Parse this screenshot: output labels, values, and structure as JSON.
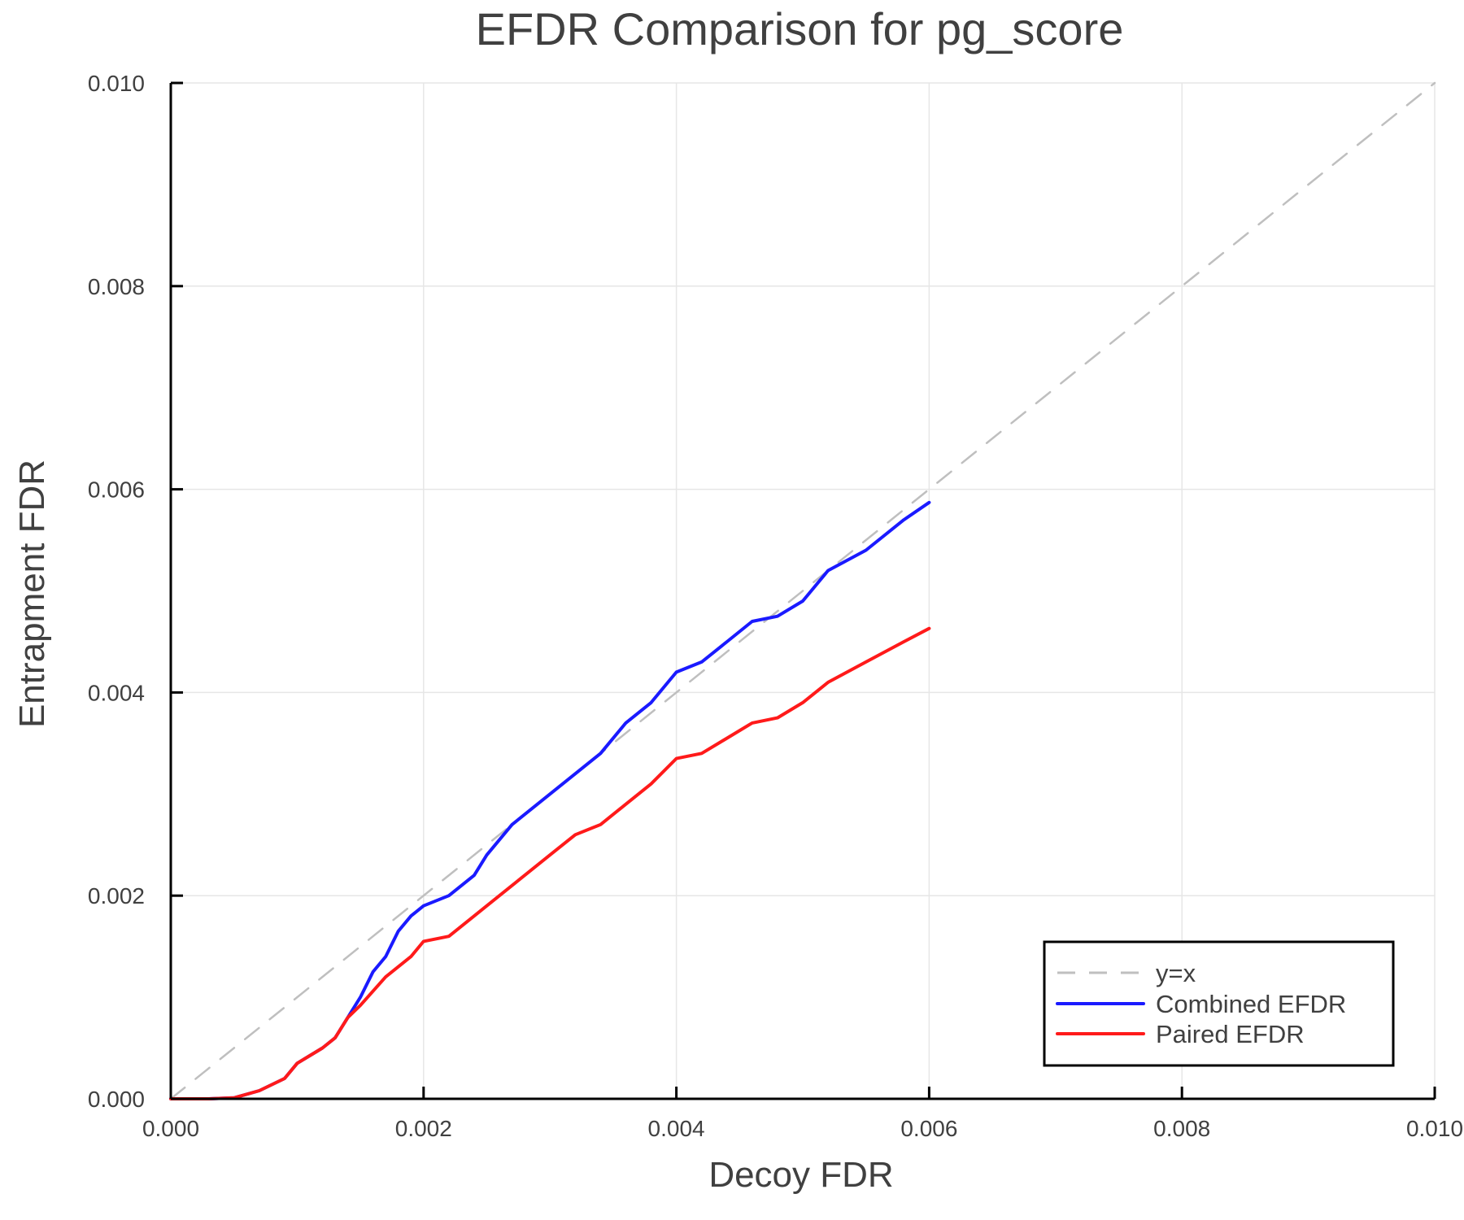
{
  "chart_data": {
    "type": "line",
    "title": "EFDR Comparison for pg_score",
    "xlabel": "Decoy FDR",
    "ylabel": "Entrapment FDR",
    "xlim": [
      0,
      0.01
    ],
    "ylim": [
      0,
      0.01
    ],
    "xticks": [
      "0.000",
      "0.002",
      "0.004",
      "0.006",
      "0.008",
      "0.010"
    ],
    "yticks": [
      "0.000",
      "0.002",
      "0.004",
      "0.006",
      "0.008",
      "0.010"
    ],
    "grid": true,
    "legend_position": "bottom-right",
    "series": [
      {
        "name": "y=x",
        "color": "#bfbfbf",
        "style": "dashed",
        "x": [
          0,
          0.01
        ],
        "y": [
          0,
          0.01
        ]
      },
      {
        "name": "Combined EFDR",
        "color": "#1a1aff",
        "style": "solid",
        "x": [
          0,
          0.0003,
          0.0005,
          0.0007,
          0.0009,
          0.001,
          0.0012,
          0.0013,
          0.0014,
          0.0015,
          0.0016,
          0.0017,
          0.0018,
          0.0019,
          0.002,
          0.0022,
          0.0024,
          0.0025,
          0.0027,
          0.003,
          0.0032,
          0.0034,
          0.0036,
          0.0038,
          0.004,
          0.0042,
          0.0044,
          0.0046,
          0.0048,
          0.005,
          0.0052,
          0.0055,
          0.0058,
          0.006
        ],
        "y": [
          0,
          0,
          1e-05,
          8e-05,
          0.0002,
          0.00035,
          0.0005,
          0.0006,
          0.0008,
          0.001,
          0.00125,
          0.0014,
          0.00165,
          0.0018,
          0.0019,
          0.002,
          0.0022,
          0.0024,
          0.0027,
          0.003,
          0.0032,
          0.0034,
          0.0037,
          0.0039,
          0.0042,
          0.0043,
          0.0045,
          0.0047,
          0.00475,
          0.0049,
          0.0052,
          0.0054,
          0.0057,
          0.00587
        ]
      },
      {
        "name": "Paired EFDR",
        "color": "#ff1a1a",
        "style": "solid",
        "x": [
          0,
          0.0003,
          0.0005,
          0.0007,
          0.0009,
          0.001,
          0.0012,
          0.0013,
          0.0014,
          0.0015,
          0.0017,
          0.0019,
          0.002,
          0.0022,
          0.0024,
          0.0025,
          0.0027,
          0.003,
          0.0032,
          0.0034,
          0.0036,
          0.0038,
          0.004,
          0.0042,
          0.0044,
          0.0046,
          0.0048,
          0.005,
          0.0052,
          0.0055,
          0.0058,
          0.006
        ],
        "y": [
          0,
          0,
          1e-05,
          8e-05,
          0.0002,
          0.00035,
          0.0005,
          0.0006,
          0.0008,
          0.00092,
          0.0012,
          0.0014,
          0.00155,
          0.0016,
          0.0018,
          0.0019,
          0.0021,
          0.0024,
          0.0026,
          0.0027,
          0.0029,
          0.0031,
          0.00335,
          0.0034,
          0.00355,
          0.0037,
          0.00375,
          0.0039,
          0.0041,
          0.0043,
          0.0045,
          0.00463
        ]
      }
    ]
  },
  "legend": {
    "items": [
      {
        "label": "y=x",
        "color": "#bfbfbf",
        "style": "dashed"
      },
      {
        "label": "Combined EFDR",
        "color": "#1a1aff",
        "style": "solid"
      },
      {
        "label": "Paired EFDR",
        "color": "#ff1a1a",
        "style": "solid"
      }
    ]
  }
}
